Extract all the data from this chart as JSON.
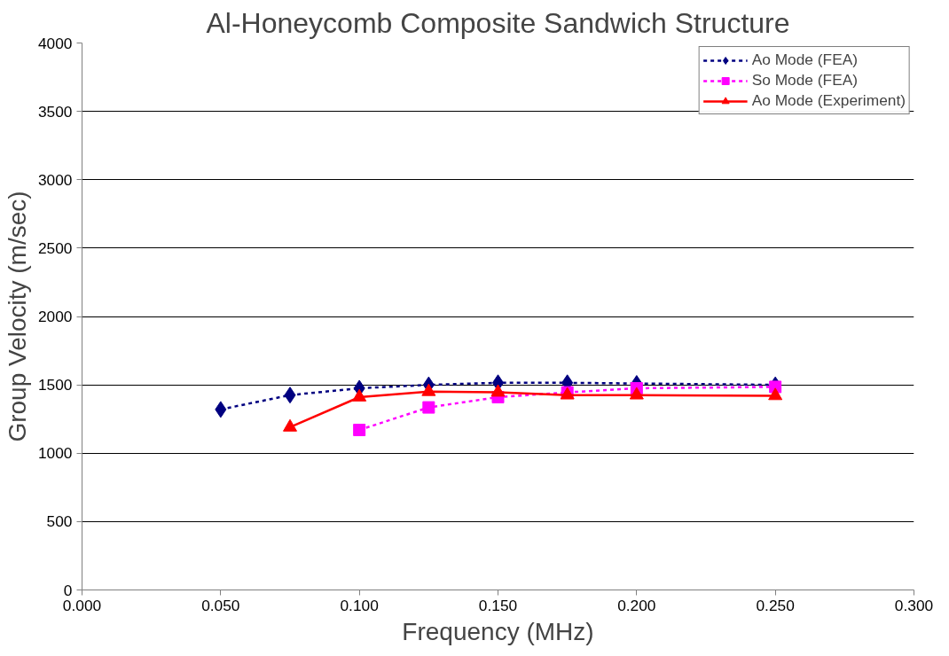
{
  "chart_data": {
    "type": "line",
    "title": "Al-Honeycomb Composite Sandwich Structure",
    "xlabel": "Frequency (MHz)",
    "ylabel": "Group Velocity (m/sec)",
    "xlim": [
      0,
      0.3
    ],
    "xticks": [
      {
        "value": 0,
        "label": "0.000"
      },
      {
        "value": 0.05,
        "label": "0.050"
      },
      {
        "value": 0.1,
        "label": "0.100"
      },
      {
        "value": 0.15,
        "label": "0.150"
      },
      {
        "value": 0.2,
        "label": "0.200"
      },
      {
        "value": 0.25,
        "label": "0.250"
      },
      {
        "value": 0.3,
        "label": "0.300"
      }
    ],
    "ylim": [
      0,
      4000
    ],
    "yticks": [
      0,
      500,
      1000,
      1500,
      2000,
      2500,
      3000,
      3500,
      4000
    ],
    "grid": "y",
    "legend": "top right",
    "series": [
      {
        "name": "Ao Mode (FEA)",
        "color": "#000080",
        "marker": "diamond",
        "line_style": "dashed",
        "x": [
          0.05,
          0.075,
          0.1,
          0.125,
          0.15,
          0.175,
          0.2,
          0.25
        ],
        "values": [
          1320,
          1425,
          1475,
          1500,
          1515,
          1515,
          1510,
          1500
        ]
      },
      {
        "name": "So Mode (FEA)",
        "color": "#ff00ff",
        "marker": "square",
        "line_style": "dashed",
        "x": [
          0.1,
          0.125,
          0.15,
          0.175,
          0.2,
          0.25
        ],
        "values": [
          1170,
          1335,
          1410,
          1445,
          1475,
          1485
        ]
      },
      {
        "name": "Ao Mode (Experiment)",
        "color": "#ff0000",
        "marker": "triangle",
        "line_style": "solid",
        "x": [
          0.075,
          0.1,
          0.125,
          0.15,
          0.175,
          0.2,
          0.25
        ],
        "values": [
          1190,
          1410,
          1450,
          1445,
          1425,
          1425,
          1420
        ]
      }
    ]
  }
}
